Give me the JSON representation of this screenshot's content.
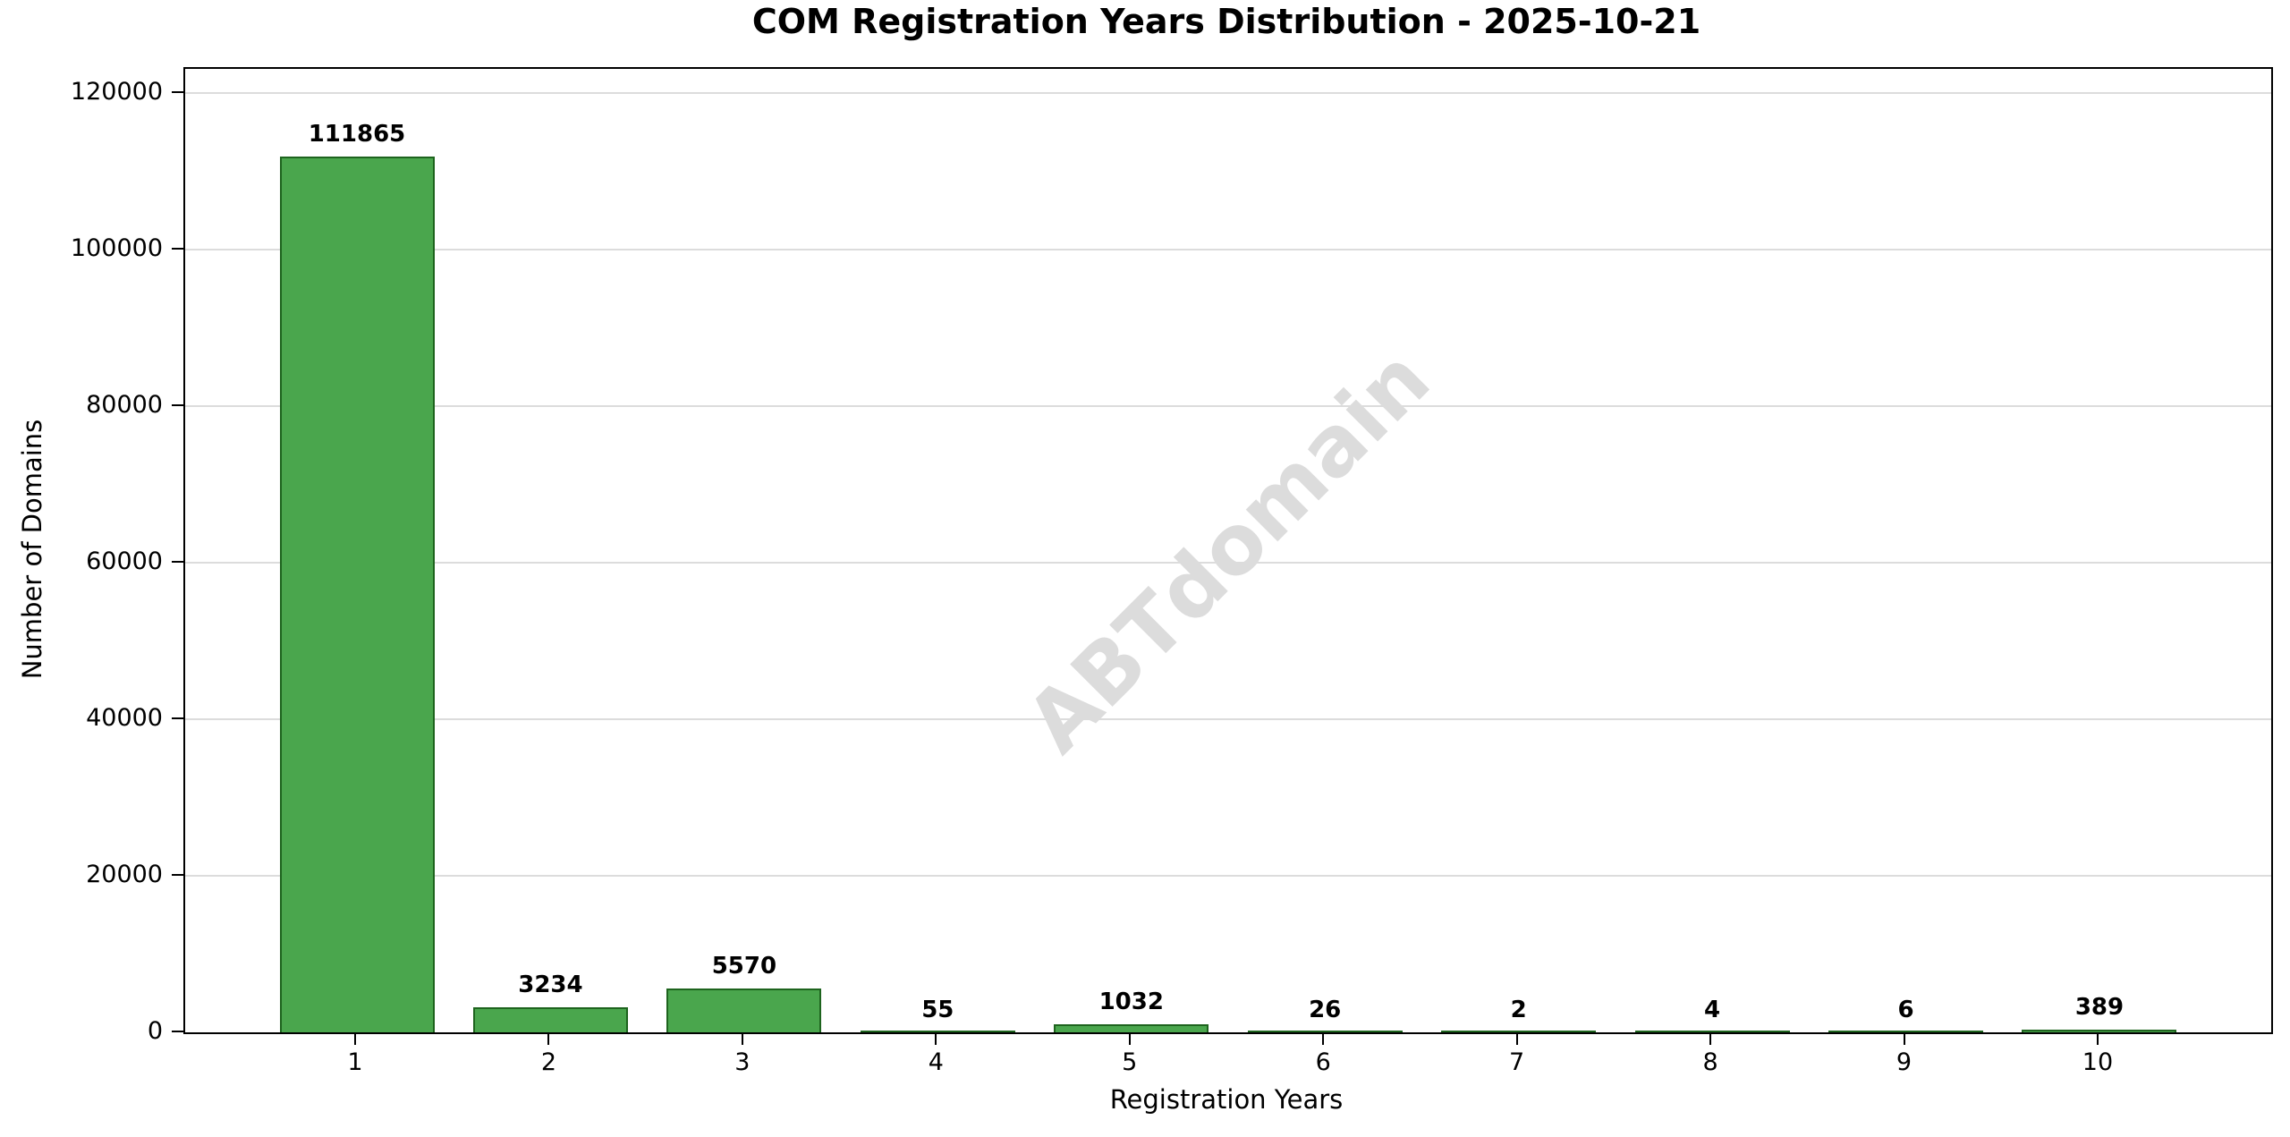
{
  "chart_data": {
    "type": "bar",
    "title": "COM Registration Years Distribution - 2025-10-21",
    "xlabel": "Registration Years",
    "ylabel": "Number of Domains",
    "categories": [
      "1",
      "2",
      "3",
      "4",
      "5",
      "6",
      "7",
      "8",
      "9",
      "10"
    ],
    "values": [
      111865,
      3234,
      5570,
      55,
      1032,
      26,
      2,
      4,
      6,
      389
    ],
    "bar_value_labels": [
      "111865",
      "3234",
      "5570",
      "55",
      "1032",
      "26",
      "2",
      "4",
      "6",
      "389"
    ],
    "yticks": [
      0,
      20000,
      40000,
      60000,
      80000,
      100000,
      120000
    ],
    "ytick_labels": [
      "0",
      "20000",
      "40000",
      "60000",
      "80000",
      "100000",
      "120000"
    ],
    "ylim": [
      0,
      123052
    ],
    "grid": "horizontal",
    "legend_position": "none",
    "watermark": "ABTdomain",
    "colors": {
      "bar_fill": "#4aa64d",
      "bar_edge": "#1e641e",
      "grid": "#dcdcdc",
      "watermark": "#dcdcdc",
      "text": "#000000",
      "background": "#ffffff"
    }
  }
}
